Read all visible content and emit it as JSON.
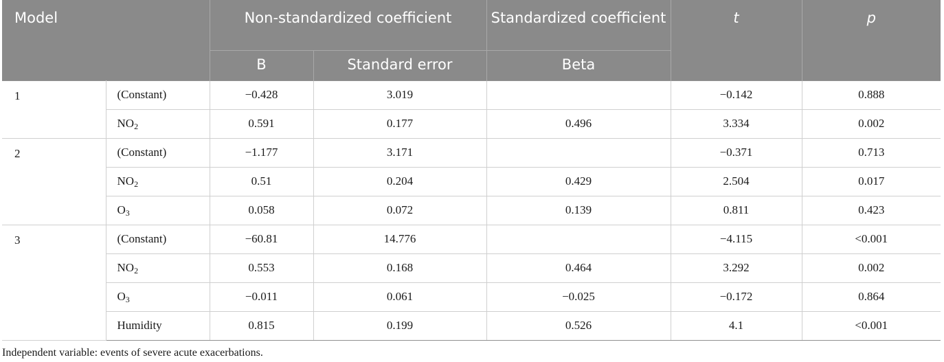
{
  "header": {
    "model": "Model",
    "non_std": "Non-standardized coefficient",
    "std": "Standardized coefficient",
    "t": "t",
    "p": "p",
    "b": "B",
    "se": "Standard error",
    "beta": "Beta"
  },
  "labels": {
    "constant": "(Constant)",
    "no2_base": "NO",
    "o3_base": "O",
    "humidity": "Humidity",
    "sub2": "2",
    "sub3": "3"
  },
  "models": [
    {
      "id": "1",
      "rows": [
        {
          "b": "−0.428",
          "se": "3.019",
          "beta": "",
          "t": "−0.142",
          "p": "0.888"
        },
        {
          "b": "0.591",
          "se": "0.177",
          "beta": "0.496",
          "t": "3.334",
          "p": "0.002"
        }
      ]
    },
    {
      "id": "2",
      "rows": [
        {
          "b": "−1.177",
          "se": "3.171",
          "beta": "",
          "t": "−0.371",
          "p": "0.713"
        },
        {
          "b": "0.51",
          "se": "0.204",
          "beta": "0.429",
          "t": "2.504",
          "p": "0.017"
        },
        {
          "b": "0.058",
          "se": "0.072",
          "beta": "0.139",
          "t": "0.811",
          "p": "0.423"
        }
      ]
    },
    {
      "id": "3",
      "rows": [
        {
          "b": "−60.81",
          "se": "14.776",
          "beta": "",
          "t": "−4.115",
          "p": "<0.001"
        },
        {
          "b": "0.553",
          "se": "0.168",
          "beta": "0.464",
          "t": "3.292",
          "p": "0.002"
        },
        {
          "b": "−0.011",
          "se": "0.061",
          "beta": "−0.025",
          "t": "−0.172",
          "p": "0.864"
        },
        {
          "b": "0.815",
          "se": "0.199",
          "beta": "0.526",
          "t": "4.1",
          "p": "<0.001"
        }
      ]
    }
  ],
  "footnote": "Independent variable: events of severe acute exacerbations."
}
